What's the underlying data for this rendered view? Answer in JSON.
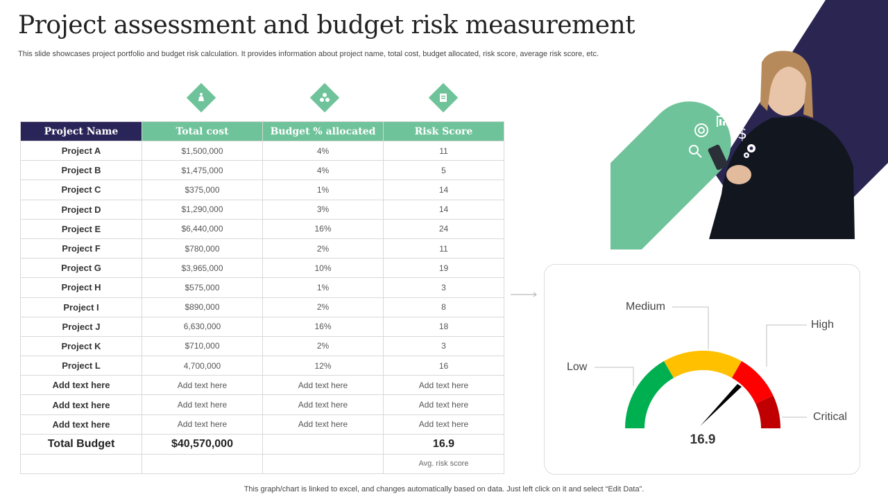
{
  "title": "Project assessment and budget risk measurement",
  "subtitle": "This slide showcases project portfolio and budget risk calculation. It provides information about project name, total cost, budget allocated, risk score, average risk score, etc.",
  "colors": {
    "navy": "#2a2558",
    "green": "#6fc39a"
  },
  "icons": [
    "cost-icon",
    "allocation-icon",
    "risk-icon"
  ],
  "table": {
    "headers": [
      "Project Name",
      "Total cost",
      "Budget % allocated",
      "Risk Score"
    ],
    "rows": [
      [
        "Project A",
        "$1,500,000",
        "4%",
        "11"
      ],
      [
        "Project B",
        "$1,475,000",
        "4%",
        "5"
      ],
      [
        "Project C",
        "$375,000",
        "1%",
        "14"
      ],
      [
        "Project D",
        "$1,290,000",
        "3%",
        "14"
      ],
      [
        "Project E",
        "$6,440,000",
        "16%",
        "24"
      ],
      [
        "Project F",
        "$780,000",
        "2%",
        "11"
      ],
      [
        "Project G",
        "$3,965,000",
        "10%",
        "19"
      ],
      [
        "Project H",
        "$575,000",
        "1%",
        "3"
      ],
      [
        "Project I",
        "$890,000",
        "2%",
        "8"
      ],
      [
        "Project J",
        "6,630,000",
        "16%",
        "18"
      ],
      [
        "Project K",
        "$710,000",
        "2%",
        "3"
      ],
      [
        "Project L",
        "4,700,000",
        "12%",
        "16"
      ],
      [
        "Add text here",
        "Add text here",
        "Add text here",
        "Add text here"
      ],
      [
        "Add text here",
        "Add text here",
        "Add text here",
        "Add text here"
      ],
      [
        "Add text here",
        "Add text here",
        "Add text here",
        "Add text here"
      ]
    ],
    "total": {
      "label": "Total Budget",
      "cost": "$40,570,000",
      "risk": "16.9"
    },
    "avg_label": "Avg. risk score"
  },
  "gauge": {
    "labels": {
      "low": "Low",
      "medium": "Medium",
      "high": "High",
      "critical": "Critical"
    },
    "value": "16.9",
    "segment_colors": [
      "#00b050",
      "#ffc000",
      "#ff0000",
      "#c00000"
    ]
  },
  "footnote": "This graph/chart is linked to excel,  and changes automatically based on data. Just left click on it and select “Edit Data”."
}
